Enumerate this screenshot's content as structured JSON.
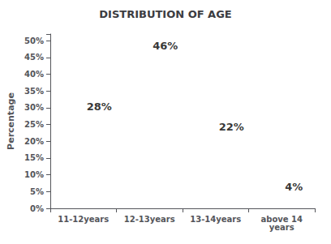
{
  "chart_data": {
    "type": "scatter",
    "title": "DISTRIBUTION OF AGE",
    "categories": [
      "11-12years",
      "12-13years",
      "13-14years",
      "above 14\nyears"
    ],
    "values": [
      28,
      46,
      22,
      4
    ],
    "value_labels": [
      "28%",
      "46%",
      "22%",
      "4%"
    ],
    "data_labels": true,
    "ylabel": "Percentage",
    "ylim": [
      0,
      52
    ],
    "yticks": [
      {
        "value": 0,
        "label": "0%"
      },
      {
        "value": 5,
        "label": "5%"
      },
      {
        "value": 10,
        "label": "10%"
      },
      {
        "value": 15,
        "label": "15%"
      },
      {
        "value": 20,
        "label": "20%"
      },
      {
        "value": 25,
        "label": "25%"
      },
      {
        "value": 30,
        "label": "30%"
      },
      {
        "value": 35,
        "label": "35%"
      },
      {
        "value": 40,
        "label": "40%"
      },
      {
        "value": 45,
        "label": "45%"
      },
      {
        "value": 50,
        "label": "50%"
      }
    ],
    "grid": false
  }
}
